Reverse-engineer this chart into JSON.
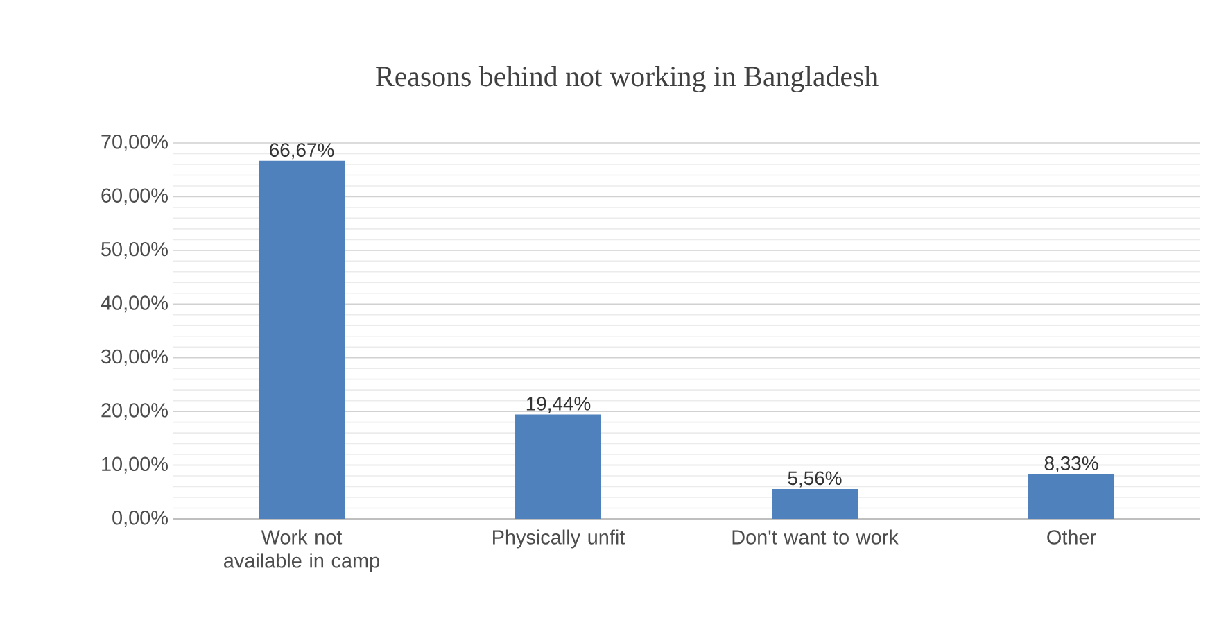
{
  "chart_data": {
    "type": "bar",
    "title": "Reasons behind not working in Bangladesh",
    "categories": [
      "Work not available in camp",
      "Physically unfit",
      "Don't want to work",
      "Other"
    ],
    "values": [
      66.67,
      19.44,
      5.56,
      8.33
    ],
    "value_labels": [
      "66,67%",
      "19,44%",
      "5,56%",
      "8,33%"
    ],
    "color": "#4f81bd",
    "ylim": [
      0,
      70
    ],
    "yticks": [
      {
        "value": 0,
        "label": "0,00%"
      },
      {
        "value": 10,
        "label": "10,00%"
      },
      {
        "value": 20,
        "label": "20,00%"
      },
      {
        "value": 30,
        "label": "30,00%"
      },
      {
        "value": 40,
        "label": "40,00%"
      },
      {
        "value": 50,
        "label": "50,00%"
      },
      {
        "value": 60,
        "label": "60,00%"
      },
      {
        "value": 70,
        "label": "70,00%"
      }
    ],
    "grid": "y"
  }
}
